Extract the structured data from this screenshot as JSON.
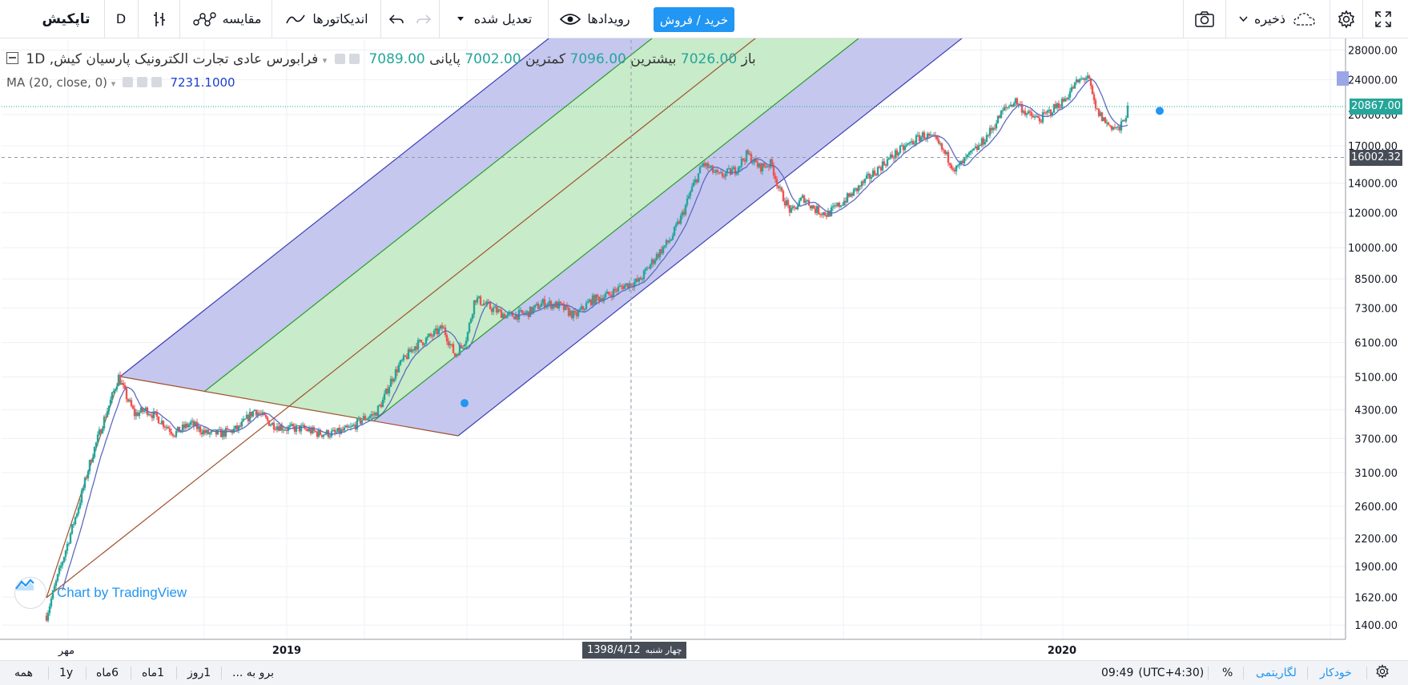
{
  "colors": {
    "accent": "#2196f3",
    "buy_sell_bg": "#2196f3",
    "up": "#26a69a",
    "down": "#ef5350",
    "ma": "#5c6bc0",
    "outer_fill": "#c5c7ef",
    "inner_fill": "#c8ebc9",
    "outer_line": "#3f3fb5",
    "inner_line": "#2a9d2a",
    "median_line": "#a0522d",
    "grid": "#eef0f4",
    "legend_values": "#26a69a",
    "legend_ma_value": "#1e3fd0",
    "price_last_bg": "#26a69a",
    "price_crosshair_bg": "#474d57"
  },
  "toolbar": {
    "logo": "تاپکیش",
    "interval": "D",
    "bar_style_icon": "candles-icon",
    "compare_label": "مقایسه",
    "compare_icon": "compare-icon",
    "indicators_label": "اندیکاتورها",
    "indicators_icon": "indicators-icon",
    "undo_icon": "undo-icon",
    "redo_icon": "redo-icon",
    "adjust_label": "تعدیل شده",
    "events_label": "رویدادها",
    "events_icon": "eye-icon",
    "buy_sell_label": "خرید / فروش",
    "snapshot_icon": "camera-icon",
    "save_label": "ذخیره",
    "save_icon": "cloud-icon",
    "settings_icon": "gear-icon",
    "fullscreen_icon": "fullscreen-icon"
  },
  "legend": {
    "symbol": "تجارت الکترونیک پارسیان کیش, 1D",
    "exchange": "فرابورس عادی",
    "open_label": "باز",
    "open_value": "7026.00",
    "high_label": "بیشترین",
    "high_value": "7096.00",
    "low_label": "کمترین",
    "low_value": "7002.00",
    "close_label": "پایانی",
    "close_value": "7089.00",
    "ma_label": "MA (20, close, 0)",
    "ma_value": "7231.1000"
  },
  "price_axis": {
    "ticks": [
      "28000.00",
      "24000.00",
      "20000.00",
      "17000.00",
      "14000.00",
      "12000.00",
      "10000.00",
      "8500.00",
      "7300.00",
      "6100.00",
      "5100.00",
      "4300.00",
      "3700.00",
      "3100.00",
      "2600.00",
      "2200.00",
      "1900.00",
      "1620.00",
      "1400.00"
    ],
    "last_price_label": "20867.00",
    "crosshair_price_label": "16002.32"
  },
  "time_axis": {
    "labels": [
      "مهر",
      "2019",
      "2020"
    ],
    "crosshair_day": "چهار شنبه",
    "crosshair_date": "1398/4/12"
  },
  "watermark": {
    "text": "Chart by TradingView",
    "icon": "tradingview-logo-icon"
  },
  "bottom_bar": {
    "ranges": [
      "همه",
      "1y",
      "6ماه",
      "1ماه",
      "1روز"
    ],
    "goto_label": "برو به ...",
    "time": "09:49",
    "timezone": "(UTC+4:30)",
    "percent_label": "%",
    "log_label": "لگاریتمی",
    "auto_label": "خودکار",
    "settings_icon": "gear-icon"
  },
  "chart_data": {
    "type": "candlestick",
    "scale": "log",
    "y_range": [
      1300,
      29500
    ],
    "ma_period": 20,
    "ma_last": 7231.1,
    "last_price": 20867,
    "crosshair_price": 16002.32,
    "crosshair_date": "1398/4/12",
    "x_labels": [
      "مهر",
      "2019",
      "2020"
    ],
    "path_keypoints": [
      [
        0,
        1470
      ],
      [
        10,
        1700
      ],
      [
        25,
        2100
      ],
      [
        40,
        2600
      ],
      [
        55,
        3300
      ],
      [
        70,
        4000
      ],
      [
        80,
        4500
      ],
      [
        90,
        5100
      ],
      [
        100,
        4600
      ],
      [
        110,
        4200
      ],
      [
        125,
        4300
      ],
      [
        140,
        4100
      ],
      [
        160,
        3800
      ],
      [
        180,
        4000
      ],
      [
        200,
        3800
      ],
      [
        220,
        3800
      ],
      [
        240,
        3900
      ],
      [
        260,
        4300
      ],
      [
        280,
        4000
      ],
      [
        300,
        3900
      ],
      [
        320,
        3900
      ],
      [
        340,
        3800
      ],
      [
        360,
        3800
      ],
      [
        380,
        3900
      ],
      [
        395,
        4100
      ],
      [
        410,
        4200
      ],
      [
        420,
        4500
      ],
      [
        430,
        5000
      ],
      [
        440,
        5400
      ],
      [
        460,
        6000
      ],
      [
        480,
        6300
      ],
      [
        495,
        6600
      ],
      [
        510,
        5700
      ],
      [
        525,
        6300
      ],
      [
        535,
        7700
      ],
      [
        555,
        7300
      ],
      [
        575,
        7000
      ],
      [
        600,
        7100
      ],
      [
        620,
        7500
      ],
      [
        640,
        7400
      ],
      [
        660,
        7000
      ],
      [
        680,
        7600
      ],
      [
        700,
        7800
      ],
      [
        720,
        8200
      ],
      [
        740,
        8400
      ],
      [
        760,
        9500
      ],
      [
        780,
        10500
      ],
      [
        795,
        12000
      ],
      [
        805,
        13500
      ],
      [
        820,
        15500
      ],
      [
        840,
        14500
      ],
      [
        860,
        15000
      ],
      [
        875,
        16300
      ],
      [
        890,
        15200
      ],
      [
        905,
        15500
      ],
      [
        915,
        13500
      ],
      [
        930,
        12000
      ],
      [
        945,
        13000
      ],
      [
        960,
        12200
      ],
      [
        975,
        11900
      ],
      [
        990,
        12500
      ],
      [
        1005,
        13200
      ],
      [
        1025,
        14300
      ],
      [
        1045,
        15500
      ],
      [
        1060,
        16300
      ],
      [
        1080,
        17300
      ],
      [
        1095,
        18000
      ],
      [
        1110,
        17500
      ],
      [
        1125,
        16000
      ],
      [
        1135,
        15000
      ],
      [
        1150,
        16000
      ],
      [
        1165,
        17000
      ],
      [
        1180,
        18500
      ],
      [
        1195,
        20500
      ],
      [
        1210,
        21500
      ],
      [
        1225,
        20000
      ],
      [
        1240,
        19500
      ],
      [
        1255,
        20500
      ],
      [
        1270,
        21500
      ],
      [
        1285,
        23500
      ],
      [
        1300,
        24500
      ],
      [
        1310,
        20500
      ],
      [
        1325,
        19000
      ],
      [
        1340,
        18500
      ],
      [
        1350,
        20500
      ]
    ]
  }
}
